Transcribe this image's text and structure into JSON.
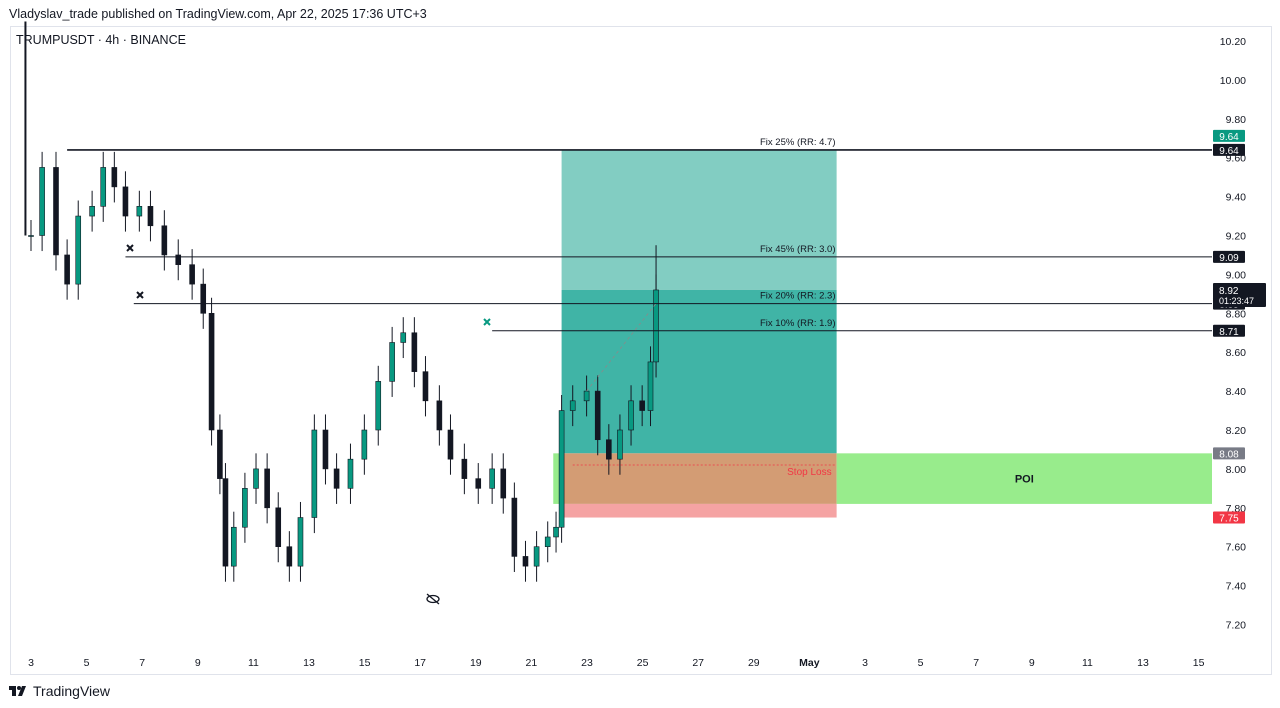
{
  "header": {
    "publisher": "Vladyslav_trade published on TradingView.com, Apr 22, 2025 17:36 UTC+3"
  },
  "symbol": {
    "label": "TRUMPUSDT · 4h · BINANCE"
  },
  "footer": {
    "brand": "TradingView",
    "logo_icon": "tradingview-logo-icon"
  },
  "chart_data": {
    "type": "candlestick",
    "timeframe": "4h",
    "ylim": [
      7.1,
      10.3
    ],
    "y_ticks": [
      "10.20",
      "10.00",
      "9.80",
      "9.60",
      "9.40",
      "9.20",
      "9.00",
      "8.80",
      "8.60",
      "8.40",
      "8.20",
      "8.00",
      "7.80",
      "7.60",
      "7.40",
      "7.20"
    ],
    "x_ticks": [
      "3",
      "5",
      "7",
      "9",
      "11",
      "13",
      "15",
      "17",
      "19",
      "21",
      "23",
      "25",
      "27",
      "29",
      "May",
      "3",
      "5",
      "7",
      "9",
      "11",
      "13",
      "15"
    ],
    "candles_close_path": [
      [
        0,
        9.2
      ],
      [
        0.4,
        9.55
      ],
      [
        0.9,
        9.1
      ],
      [
        1.3,
        8.95
      ],
      [
        1.7,
        9.3
      ],
      [
        2.2,
        9.35
      ],
      [
        2.6,
        9.55
      ],
      [
        3.0,
        9.45
      ],
      [
        3.4,
        9.3
      ],
      [
        3.9,
        9.35
      ],
      [
        4.3,
        9.25
      ],
      [
        4.8,
        9.1
      ],
      [
        5.3,
        9.05
      ],
      [
        5.8,
        8.95
      ],
      [
        6.2,
        8.8
      ],
      [
        6.5,
        8.2
      ],
      [
        6.8,
        7.95
      ],
      [
        7.0,
        7.5
      ],
      [
        7.3,
        7.7
      ],
      [
        7.7,
        7.9
      ],
      [
        8.1,
        8.0
      ],
      [
        8.5,
        7.8
      ],
      [
        8.9,
        7.6
      ],
      [
        9.3,
        7.5
      ],
      [
        9.7,
        7.75
      ],
      [
        10.2,
        8.2
      ],
      [
        10.6,
        8.0
      ],
      [
        11.0,
        7.9
      ],
      [
        11.5,
        8.05
      ],
      [
        12.0,
        8.2
      ],
      [
        12.5,
        8.45
      ],
      [
        13.0,
        8.65
      ],
      [
        13.4,
        8.7
      ],
      [
        13.8,
        8.5
      ],
      [
        14.2,
        8.35
      ],
      [
        14.7,
        8.2
      ],
      [
        15.1,
        8.05
      ],
      [
        15.6,
        7.95
      ],
      [
        16.1,
        7.9
      ],
      [
        16.6,
        8.0
      ],
      [
        17.0,
        7.85
      ],
      [
        17.4,
        7.55
      ],
      [
        17.8,
        7.5
      ],
      [
        18.2,
        7.6
      ],
      [
        18.6,
        7.65
      ],
      [
        18.9,
        7.7
      ],
      [
        19.1,
        8.3
      ],
      [
        19.5,
        8.35
      ],
      [
        20.0,
        8.4
      ],
      [
        20.4,
        8.15
      ],
      [
        20.8,
        8.05
      ],
      [
        21.2,
        8.2
      ],
      [
        21.6,
        8.35
      ],
      [
        22.0,
        8.3
      ],
      [
        22.3,
        8.55
      ],
      [
        22.5,
        8.92
      ]
    ],
    "current_price": {
      "value": "8.92",
      "countdown": "01:23:47"
    },
    "levels": [
      {
        "label": "Fix 25% (RR: 4.7)",
        "price": 9.64,
        "tag": "9.64"
      },
      {
        "label": "Fix 45% (RR: 3.0)",
        "price": 9.09,
        "tag": "9.09"
      },
      {
        "label": "Fix 20% (RR: 2.3)",
        "price": 8.85,
        "tag": "8.85"
      },
      {
        "label": "Fix 10% (RR: 1.9)",
        "price": 8.71,
        "tag": "8.71"
      }
    ],
    "target_tag": {
      "value": "9.64",
      "color": "#089981"
    },
    "entry_tag": {
      "value": "8.08",
      "color": "#787b86"
    },
    "stop_tag": {
      "value": "7.75",
      "color": "#f23645"
    },
    "position": {
      "entry": 8.08,
      "stop": 7.75,
      "target": 9.64,
      "inner_top": 8.92,
      "start_day": 19.1,
      "end_day": 29.0,
      "stop_loss_label": "Stop Loss",
      "stop_line": 8.02
    },
    "poi": {
      "label": "POI",
      "top": 8.08,
      "bottom": 7.82,
      "start_day": 29.0,
      "end_day": 45.2,
      "color": "#98ec8c"
    },
    "colors": {
      "up": "#089981",
      "down": "#131722",
      "target_zone": "#82cdc2",
      "profit_zone": "#40b4a6",
      "loss_zone": "#d39c74",
      "stop_zone": "#f5a3a3"
    }
  }
}
